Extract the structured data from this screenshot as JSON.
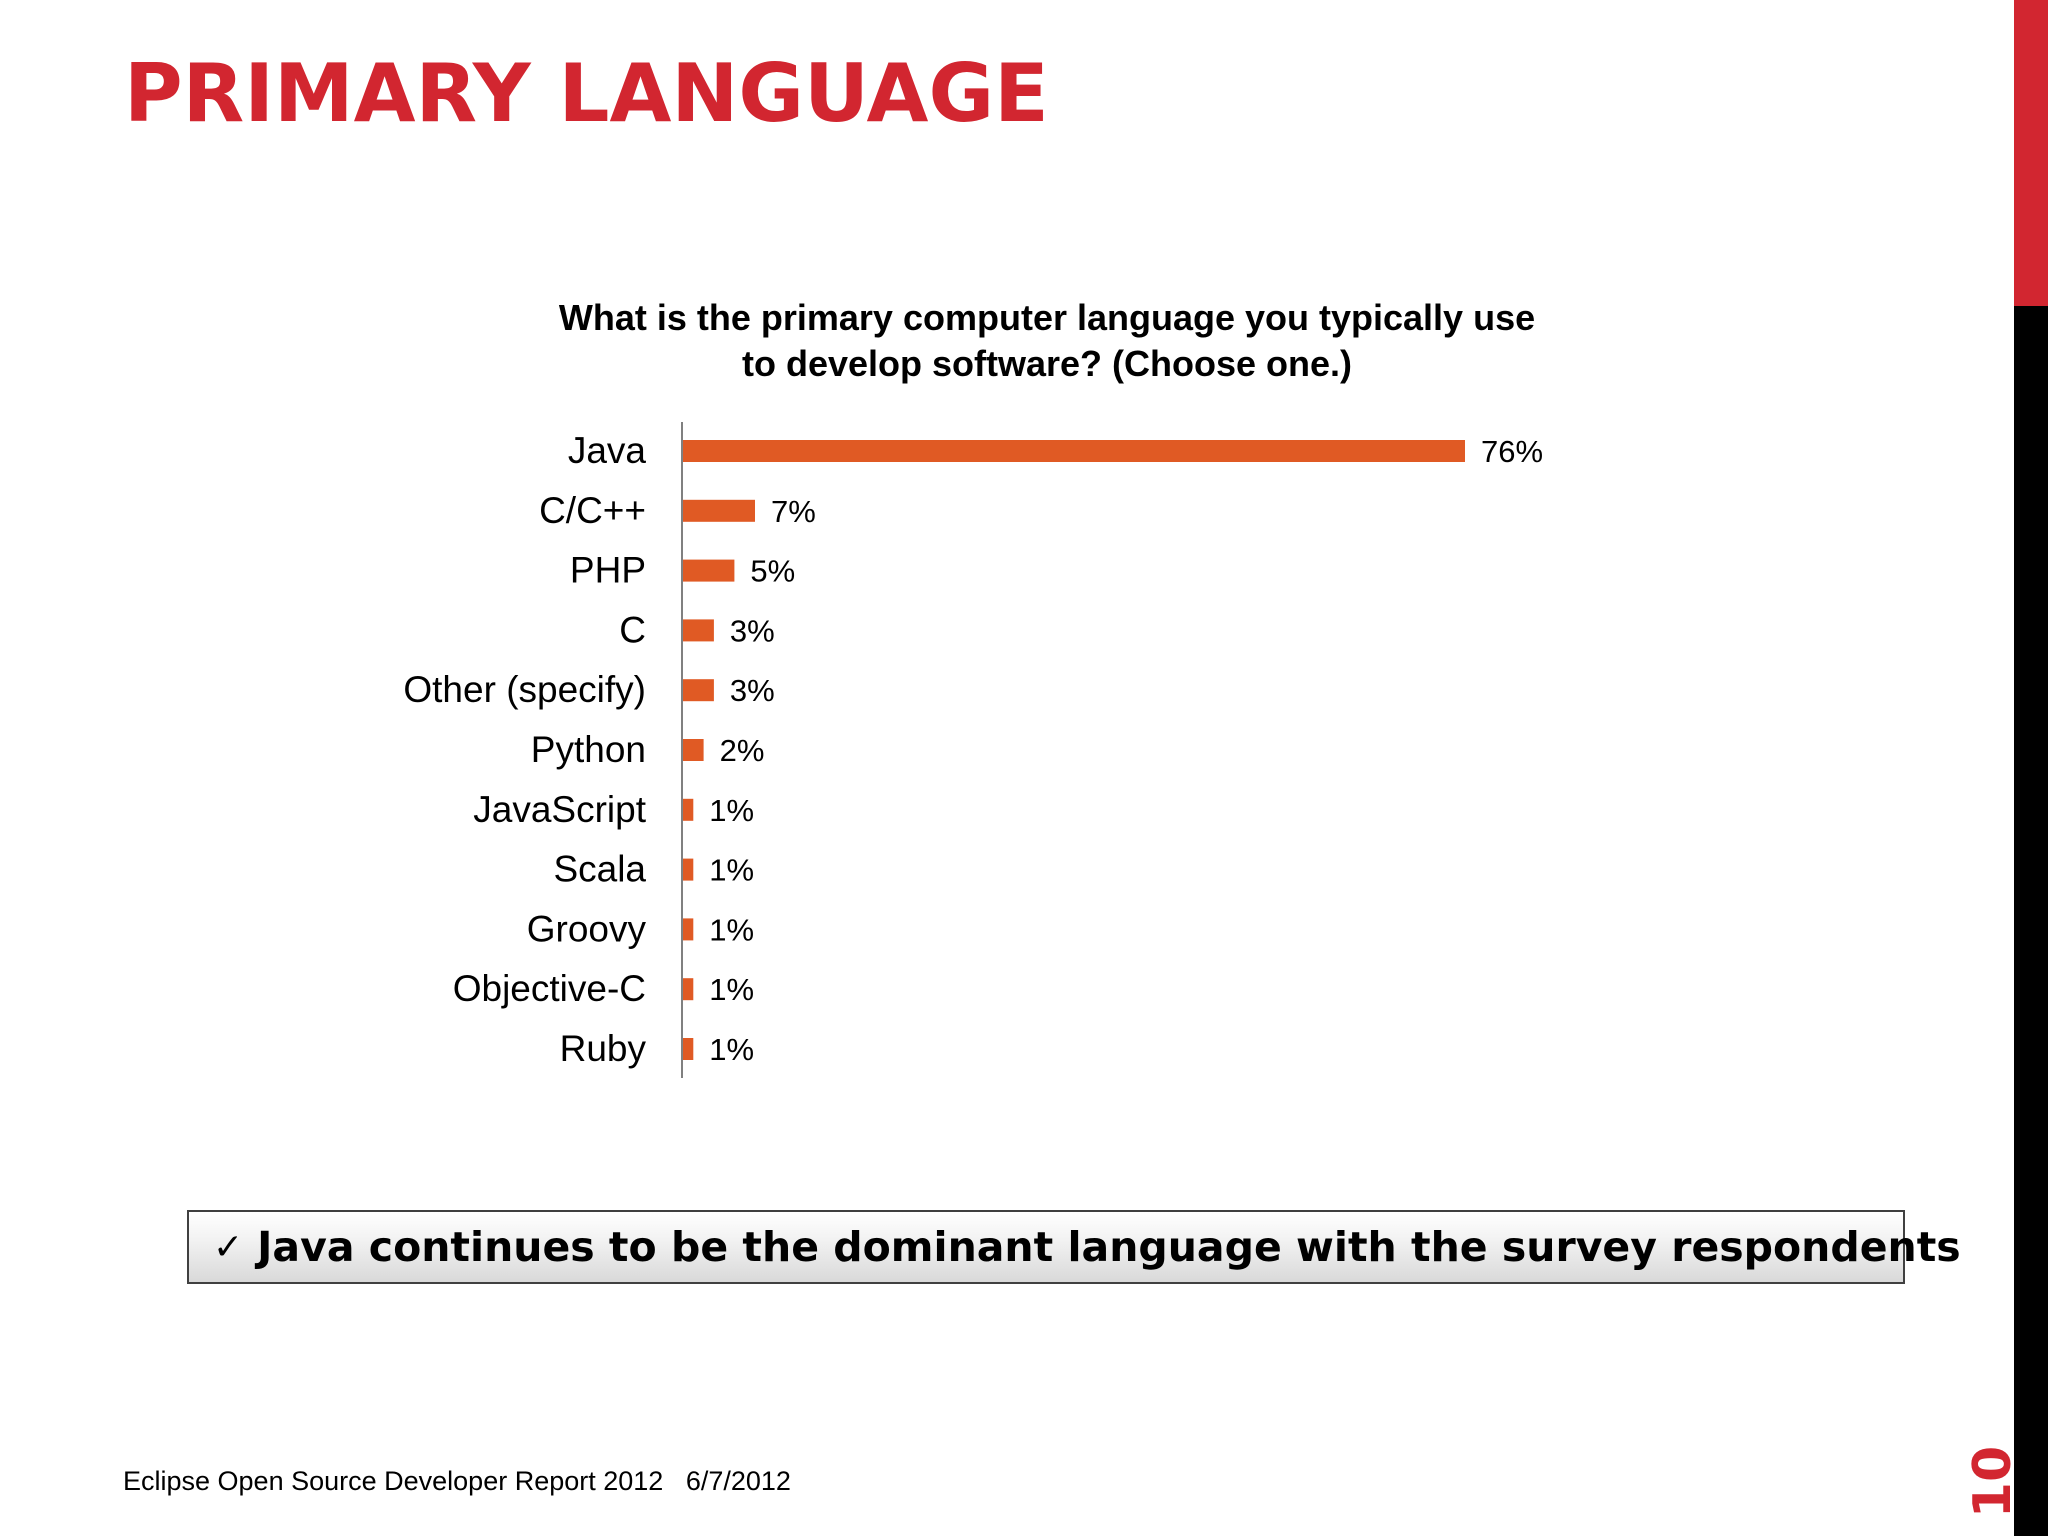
{
  "slide": {
    "title": "PRIMARY LANGUAGE",
    "callout_check": "✓",
    "callout": "Java continues to be the dominant language with the survey respondents",
    "footer": "Eclipse Open Source Developer Report 2012   6/7/2012",
    "page_number": "10"
  },
  "colors": {
    "title": "#d22630",
    "bar": "#e05a24",
    "side_bar": "#000000",
    "side_bar_accent": "#d22630"
  },
  "chart_data": {
    "type": "bar",
    "orientation": "horizontal",
    "title_lines": [
      "What is the primary computer language you typically use",
      "to develop software? (Choose one.)"
    ],
    "categories": [
      "Java",
      "C/C++",
      "PHP",
      "C",
      "Other (specify)",
      "Python",
      "JavaScript",
      "Scala",
      "Groovy",
      "Objective-C",
      "Ruby"
    ],
    "values": [
      76,
      7,
      5,
      3,
      3,
      2,
      1,
      1,
      1,
      1,
      1
    ],
    "value_labels": [
      "76%",
      "7%",
      "5%",
      "3%",
      "3%",
      "2%",
      "1%",
      "1%",
      "1%",
      "1%",
      "1%"
    ],
    "unit": "%",
    "grid": false,
    "legend": "none"
  }
}
